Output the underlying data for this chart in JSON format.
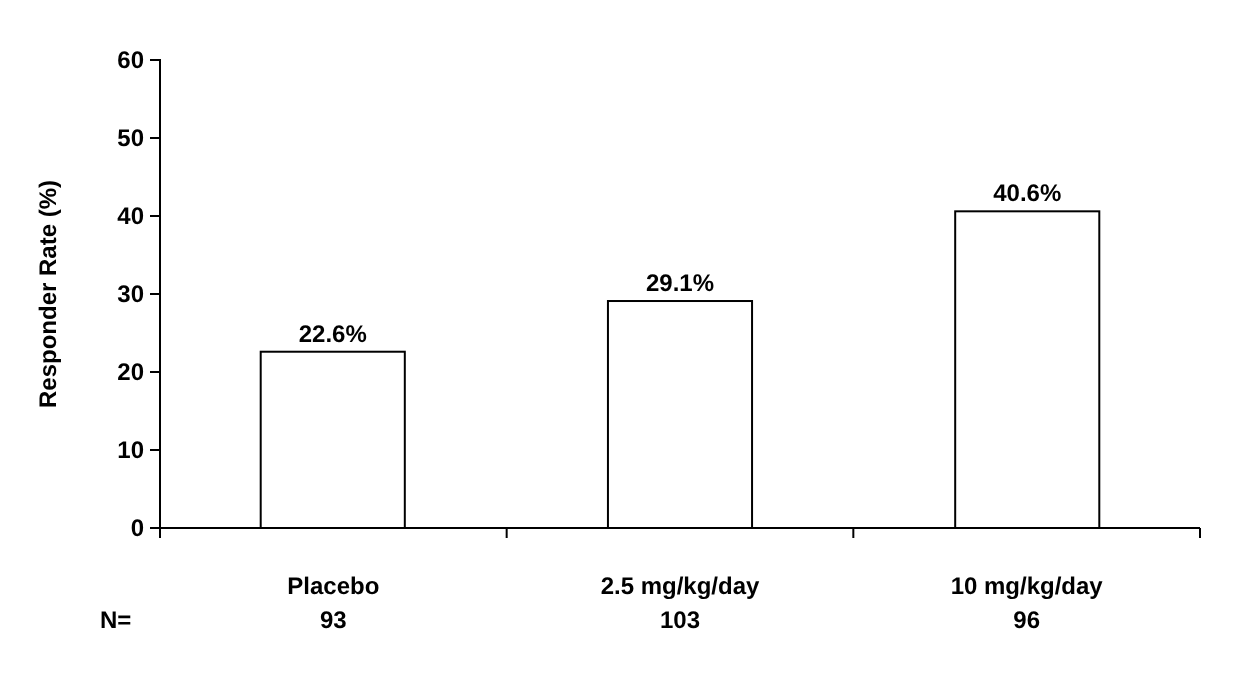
{
  "chart_data": {
    "type": "bar",
    "ylabel": "Responder Rate (%)",
    "categories": [
      "Placebo\n93",
      "2.5 mg/kg/day\n103",
      "10 mg/kg/day\n96"
    ],
    "values": [
      22.6,
      29.1,
      40.6
    ],
    "value_labels": [
      "22.6%",
      "29.1%",
      "40.6%"
    ],
    "color": "#ffffff",
    "ylim": [
      0,
      60
    ],
    "yticks": [
      0,
      10,
      20,
      30,
      40,
      50,
      60
    ],
    "grid": false,
    "annotations": [
      "N="
    ]
  }
}
